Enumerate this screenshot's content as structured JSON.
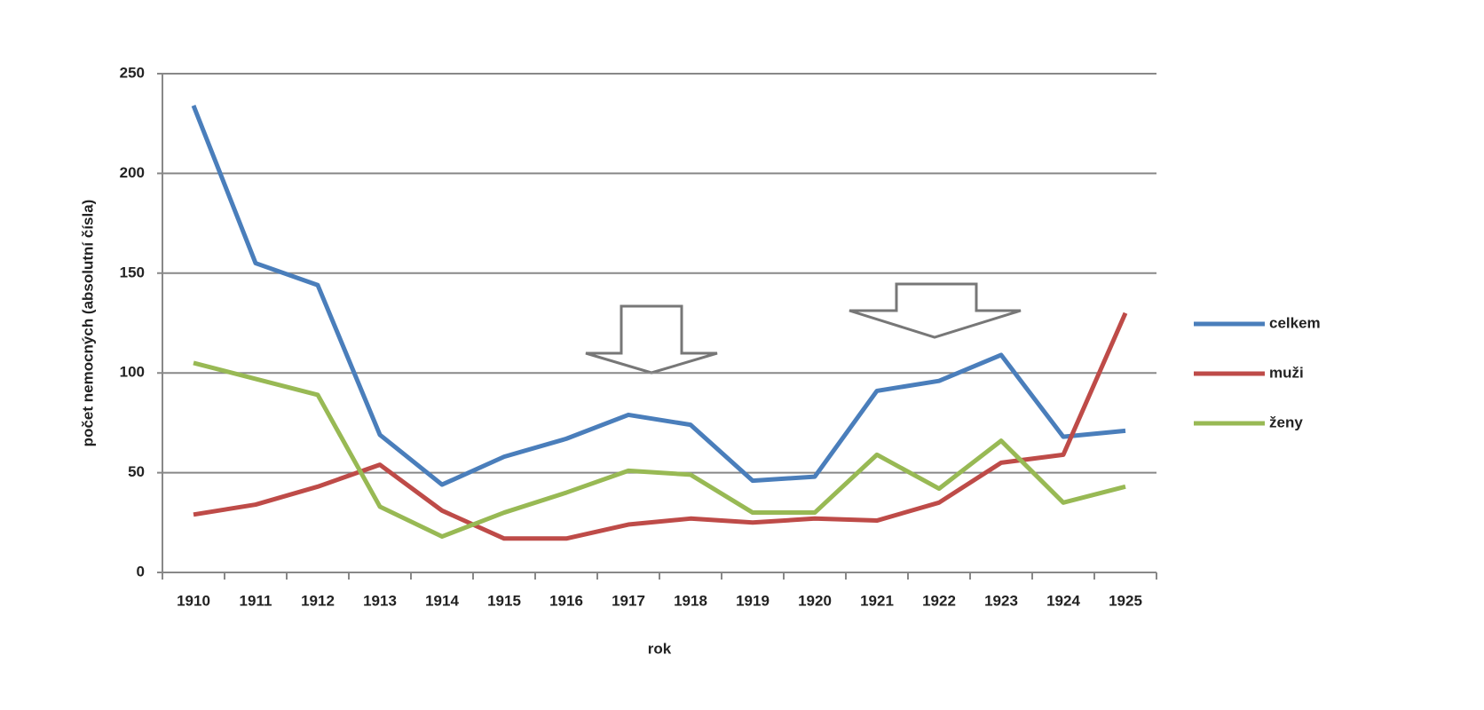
{
  "chart_data": {
    "type": "line",
    "x_label": "rok",
    "y_label": "počet nemocných (absolutní čísla)",
    "categories": [
      "1910",
      "1911",
      "1912",
      "1913",
      "1914",
      "1915",
      "1916",
      "1917",
      "1918",
      "1919",
      "1920",
      "1921",
      "1922",
      "1923",
      "1924",
      "1925"
    ],
    "series": [
      {
        "name": "celkem",
        "color": "#4a7ebb",
        "values": [
          234,
          155,
          144,
          69,
          44,
          58,
          67,
          79,
          74,
          46,
          48,
          91,
          96,
          109,
          68,
          71
        ]
      },
      {
        "name": "muži",
        "color": "#be4b48",
        "values": [
          29,
          34,
          43,
          54,
          31,
          17,
          17,
          24,
          27,
          25,
          27,
          26,
          35,
          55,
          59,
          130
        ]
      },
      {
        "name": "ženy",
        "color": "#98b954",
        "values": [
          105,
          97,
          89,
          33,
          18,
          30,
          40,
          51,
          49,
          30,
          30,
          59,
          42,
          66,
          35,
          43
        ]
      }
    ],
    "ylim": [
      0,
      250
    ],
    "yticks": [
      0,
      50,
      100,
      150,
      200,
      250
    ],
    "grid": true,
    "legend": "right"
  }
}
